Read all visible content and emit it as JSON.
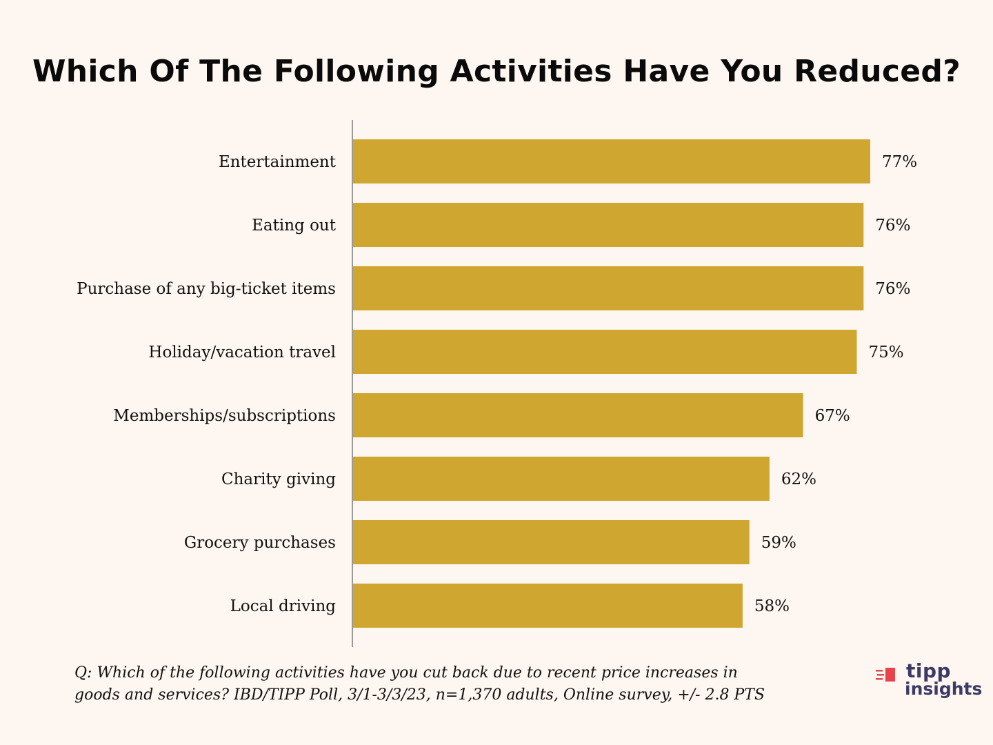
{
  "chart_data": {
    "type": "bar",
    "orientation": "horizontal",
    "title": "Which Of The Following Activities Have You Reduced?",
    "categories": [
      "Entertainment",
      "Eating out",
      "Purchase of any big-ticket items",
      "Holiday/vacation travel",
      "Memberships/subscriptions",
      "Charity giving",
      "Grocery purchases",
      "Local driving"
    ],
    "values": [
      77,
      76,
      76,
      75,
      67,
      62,
      59,
      58
    ],
    "value_labels": [
      "77%",
      "76%",
      "76%",
      "75%",
      "67%",
      "62%",
      "59%",
      "58%"
    ],
    "unit": "%",
    "xlim": [
      0,
      77
    ],
    "xlabel": "",
    "ylabel": "",
    "grid": false,
    "legend": "none",
    "bar_color": "#cfa730",
    "axis_color": "#9a9a9a"
  },
  "footnote": {
    "line1": "Q:  Which of the following activities have you cut back due to recent price increases in",
    "line2": "goods and services? IBD/TIPP Poll, 3/1-3/3/23, n=1,370 adults, Online survey, +/- 2.8 PTS"
  },
  "logo": {
    "brand_top": "tipp",
    "brand_bottom": "insights",
    "mark_icon": "speed-lines-icon",
    "colors": {
      "mark": "#e8434a",
      "text": "#3c3a66"
    }
  },
  "colors": {
    "background": "#fdf6f1",
    "text": "#111111"
  }
}
